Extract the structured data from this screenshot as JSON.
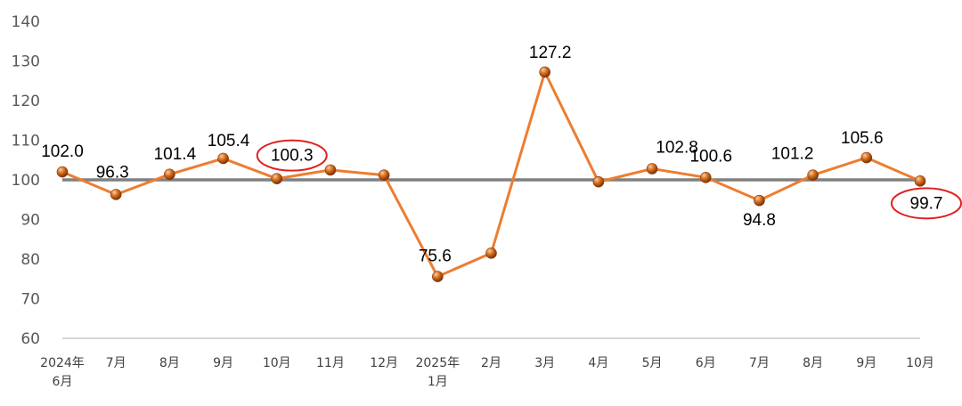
{
  "chart_data": {
    "type": "line",
    "categories": [
      [
        "2024年",
        "6月"
      ],
      [
        "7月"
      ],
      [
        "8月"
      ],
      [
        "9月"
      ],
      [
        "10月"
      ],
      [
        "11月"
      ],
      [
        "12月"
      ],
      [
        "2025年",
        "1月"
      ],
      [
        "2月"
      ],
      [
        "3月"
      ],
      [
        "4月"
      ],
      [
        "5月"
      ],
      [
        "6月"
      ],
      [
        "7月"
      ],
      [
        "8月"
      ],
      [
        "9月"
      ],
      [
        "10月"
      ]
    ],
    "values": [
      102.0,
      96.3,
      101.4,
      105.4,
      100.3,
      102.5,
      101.2,
      75.6,
      81.5,
      127.2,
      99.5,
      102.8,
      100.6,
      94.8,
      101.2,
      105.6,
      99.7
    ],
    "data_labels": [
      "102.0",
      "96.3",
      "101.4",
      "105.4",
      "100.3",
      "",
      "",
      "75.6",
      "",
      "127.2",
      "",
      "102.8",
      "100.6",
      "94.8",
      "101.2",
      "105.6",
      "99.7"
    ],
    "highlighted_labels": [
      4,
      16
    ],
    "reference_line": 100,
    "ylim": [
      60,
      140
    ],
    "yticks": [
      60,
      70,
      80,
      90,
      100,
      110,
      120,
      130,
      140
    ],
    "grid": false,
    "title": "",
    "xlabel": "",
    "ylabel": "",
    "colors": {
      "line": "#ED7D31",
      "marker": "#C55A11",
      "marker_highlight": "#F8CBAD",
      "reference": "#808080",
      "highlight_ring": "#E0201E",
      "axis": "#BFBFBF"
    }
  }
}
